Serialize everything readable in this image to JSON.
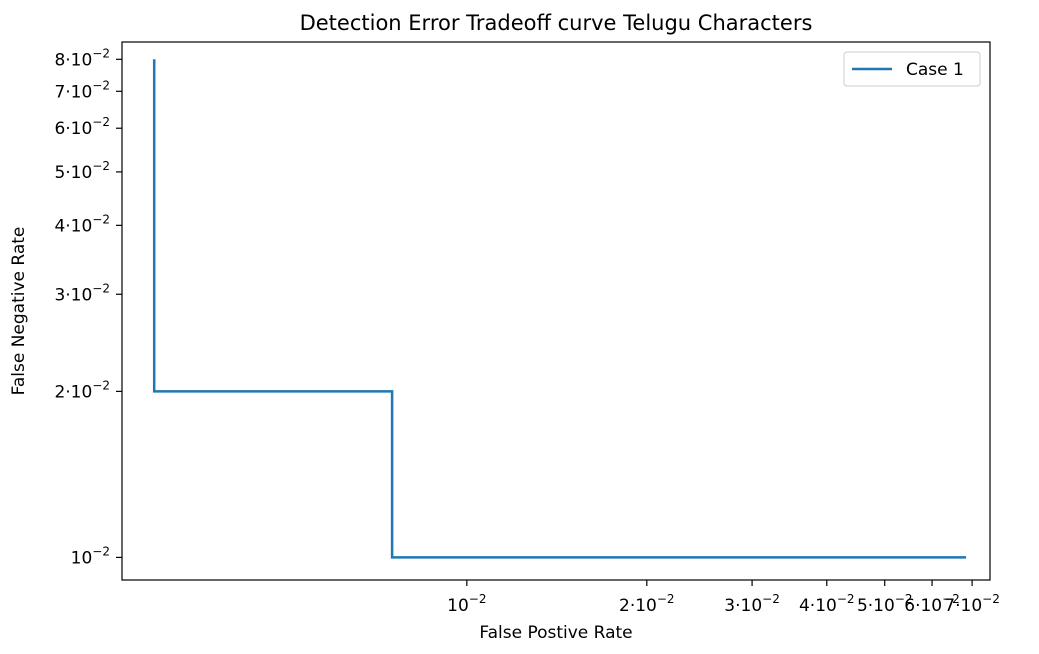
{
  "chart_data": {
    "type": "line",
    "title": "Detection Error Tradeoff curve Telugu Characters",
    "xlabel": "False Postive Rate",
    "ylabel": "False Negative Rate",
    "xscale": "log",
    "yscale": "log",
    "xlim": [
      0.00265,
      0.075
    ],
    "ylim": [
      0.0091,
      0.086
    ],
    "x_ticks": [
      {
        "value": 0.01,
        "coef": "",
        "exp": "−2"
      },
      {
        "value": 0.02,
        "coef": "2",
        "exp": "−2"
      },
      {
        "value": 0.03,
        "coef": "3",
        "exp": "−2"
      },
      {
        "value": 0.04,
        "coef": "4",
        "exp": "−2"
      },
      {
        "value": 0.05,
        "coef": "5",
        "exp": "−2"
      },
      {
        "value": 0.06,
        "coef": "6",
        "exp": "−2"
      },
      {
        "value": 0.07,
        "coef": "7",
        "exp": "−2"
      }
    ],
    "y_ticks": [
      {
        "value": 0.01,
        "coef": "",
        "exp": "−2"
      },
      {
        "value": 0.02,
        "coef": "2",
        "exp": "−2"
      },
      {
        "value": 0.03,
        "coef": "3",
        "exp": "−2"
      },
      {
        "value": 0.04,
        "coef": "4",
        "exp": "−2"
      },
      {
        "value": 0.05,
        "coef": "5",
        "exp": "−2"
      },
      {
        "value": 0.06,
        "coef": "6",
        "exp": "−2"
      },
      {
        "value": 0.07,
        "coef": "7",
        "exp": "−2"
      },
      {
        "value": 0.08,
        "coef": "8",
        "exp": "−2"
      }
    ],
    "series": [
      {
        "name": "Case 1",
        "color": "#1f77b4",
        "step": true,
        "x": [
          0.003,
          0.003,
          0.0075,
          0.0075,
          0.0684
        ],
        "y": [
          0.08,
          0.02,
          0.02,
          0.01,
          0.01
        ]
      }
    ],
    "legend": {
      "position": "top-right"
    },
    "grid": false
  }
}
